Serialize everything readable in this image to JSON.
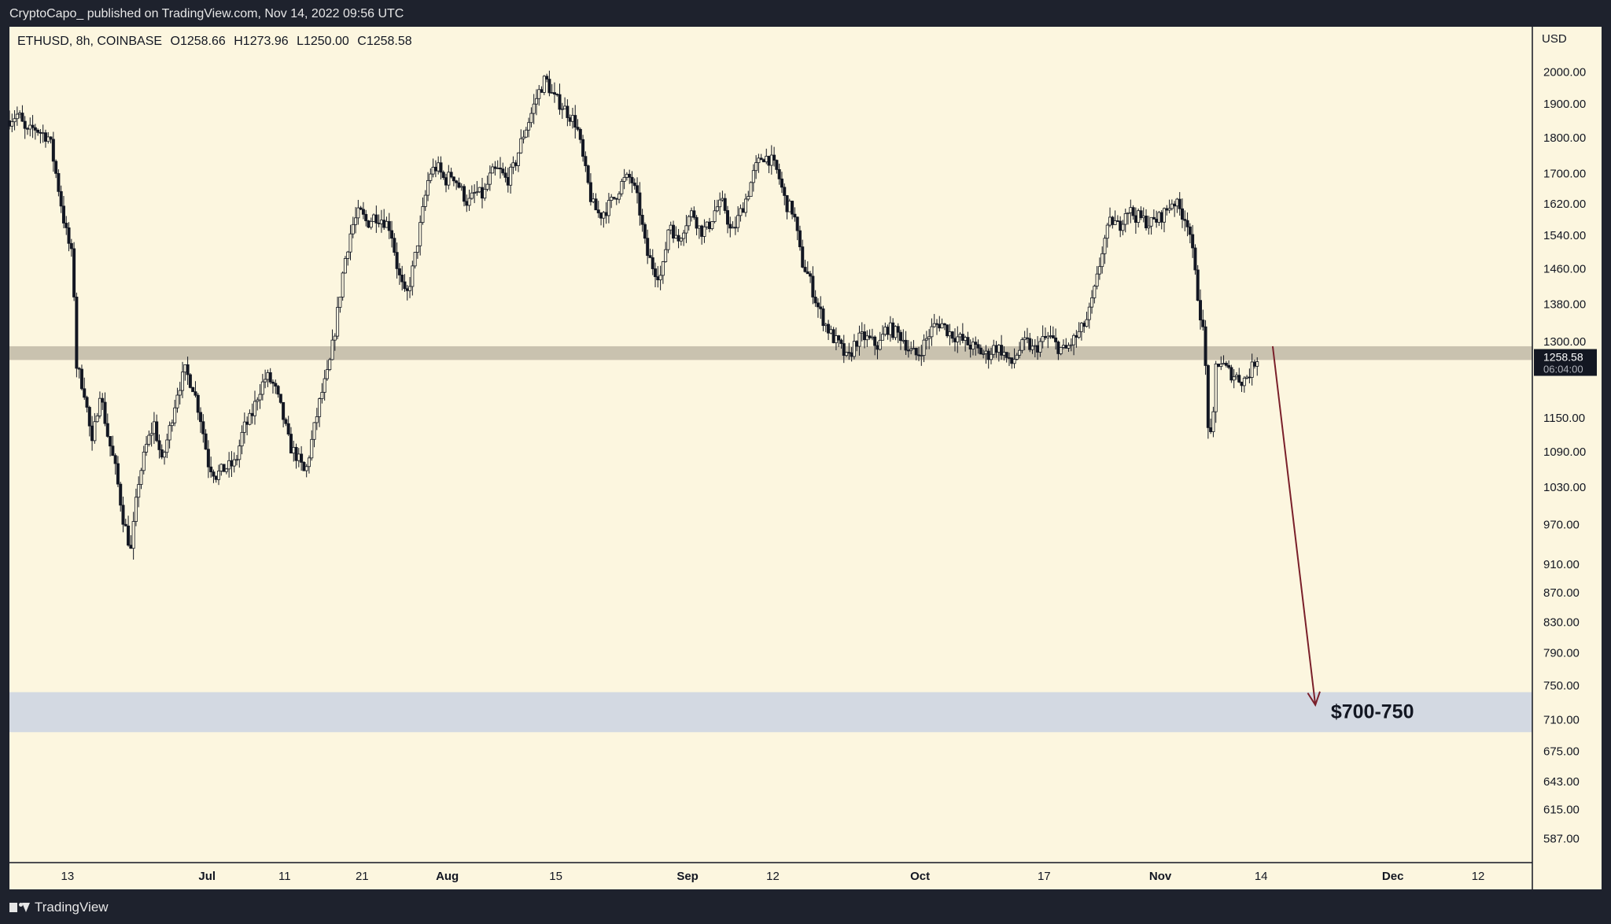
{
  "header": {
    "published": "CryptoCapo_ published on TradingView.com, Nov 14, 2022 09:56 UTC"
  },
  "legend": {
    "symbol": "ETHUSD, 8h, COINBASE",
    "open": "O1258.66",
    "high": "H1273.96",
    "low": "L1250.00",
    "close": "C1258.58"
  },
  "footer": {
    "brand": "TradingView"
  },
  "colors": {
    "background": "#fcf6df",
    "candle": "#131722",
    "resistance_zone": "#c9c2af",
    "target_zone": "#d3d9e2",
    "arrow": "#7a1f2a"
  },
  "chart_data": {
    "type": "candlestick",
    "currency_label": "USD",
    "y_scale": "log",
    "ylim": [
      565,
      2150
    ],
    "y_ticks": [
      {
        "value": 2000,
        "label": "2000.00"
      },
      {
        "value": 1900,
        "label": "1900.00"
      },
      {
        "value": 1800,
        "label": "1800.00"
      },
      {
        "value": 1700,
        "label": "1700.00"
      },
      {
        "value": 1620,
        "label": "1620.00"
      },
      {
        "value": 1540,
        "label": "1540.00"
      },
      {
        "value": 1460,
        "label": "1460.00"
      },
      {
        "value": 1380,
        "label": "1380.00"
      },
      {
        "value": 1300,
        "label": "1300.00"
      },
      {
        "value": 1150,
        "label": "1150.00"
      },
      {
        "value": 1090,
        "label": "1090.00"
      },
      {
        "value": 1030,
        "label": "1030.00"
      },
      {
        "value": 970,
        "label": "970.00"
      },
      {
        "value": 910,
        "label": "910.00"
      },
      {
        "value": 870,
        "label": "870.00"
      },
      {
        "value": 830,
        "label": "830.00"
      },
      {
        "value": 790,
        "label": "790.00"
      },
      {
        "value": 750,
        "label": "750.00"
      },
      {
        "value": 710,
        "label": "710.00"
      },
      {
        "value": 675,
        "label": "675.00"
      },
      {
        "value": 643,
        "label": "643.00"
      },
      {
        "value": 615,
        "label": "615.00"
      },
      {
        "value": 587,
        "label": "587.00"
      }
    ],
    "x_ticks": [
      {
        "day": 0,
        "label": "13"
      },
      {
        "day": 18,
        "label": "Jul"
      },
      {
        "day": 28,
        "label": "11"
      },
      {
        "day": 38,
        "label": "21"
      },
      {
        "day": 49,
        "label": "Aug"
      },
      {
        "day": 63,
        "label": "15"
      },
      {
        "day": 80,
        "label": "Sep"
      },
      {
        "day": 91,
        "label": "12"
      },
      {
        "day": 110,
        "label": "Oct"
      },
      {
        "day": 126,
        "label": "17"
      },
      {
        "day": 141,
        "label": "Nov"
      },
      {
        "day": 154,
        "label": "14"
      },
      {
        "day": 171,
        "label": "Dec"
      },
      {
        "day": 182,
        "label": "12"
      }
    ],
    "xlim_days": [
      -7.5,
      189
    ],
    "last_price": {
      "value": 1258.58,
      "label": "1258.58",
      "countdown": "06:04:00"
    },
    "price_path": [
      [
        -7.5,
        1850
      ],
      [
        -6,
        1870
      ],
      [
        -5,
        1810
      ],
      [
        -4,
        1830
      ],
      [
        -2,
        1800
      ],
      [
        -1,
        1680
      ],
      [
        0,
        1560
      ],
      [
        1,
        1480
      ],
      [
        1.5,
        1250
      ],
      [
        2.5,
        1200
      ],
      [
        3.5,
        1100
      ],
      [
        4.5,
        1200
      ],
      [
        5.5,
        1120
      ],
      [
        6.5,
        1060
      ],
      [
        7.5,
        980
      ],
      [
        8.5,
        930
      ],
      [
        9.5,
        1040
      ],
      [
        10.5,
        1100
      ],
      [
        11.5,
        1140
      ],
      [
        12.5,
        1070
      ],
      [
        13.5,
        1130
      ],
      [
        14.5,
        1200
      ],
      [
        15.5,
        1240
      ],
      [
        16.5,
        1210
      ],
      [
        17.5,
        1150
      ],
      [
        18.5,
        1070
      ],
      [
        19.5,
        1050
      ],
      [
        20.5,
        1060
      ],
      [
        22,
        1070
      ],
      [
        23,
        1130
      ],
      [
        24,
        1150
      ],
      [
        25,
        1200
      ],
      [
        26,
        1230
      ],
      [
        27,
        1210
      ],
      [
        28,
        1160
      ],
      [
        29,
        1100
      ],
      [
        30,
        1080
      ],
      [
        31,
        1050
      ],
      [
        32,
        1120
      ],
      [
        33,
        1190
      ],
      [
        34,
        1240
      ],
      [
        35,
        1340
      ],
      [
        36,
        1470
      ],
      [
        37,
        1560
      ],
      [
        38,
        1600
      ],
      [
        39,
        1570
      ],
      [
        40,
        1590
      ],
      [
        41,
        1580
      ],
      [
        42,
        1560
      ],
      [
        43,
        1450
      ],
      [
        44,
        1390
      ],
      [
        45,
        1470
      ],
      [
        46,
        1580
      ],
      [
        47,
        1700
      ],
      [
        48,
        1720
      ],
      [
        49,
        1680
      ],
      [
        50,
        1700
      ],
      [
        51,
        1660
      ],
      [
        52,
        1620
      ],
      [
        53,
        1650
      ],
      [
        54,
        1640
      ],
      [
        55,
        1700
      ],
      [
        56,
        1710
      ],
      [
        57,
        1680
      ],
      [
        58,
        1720
      ],
      [
        59,
        1800
      ],
      [
        60,
        1860
      ],
      [
        61,
        1930
      ],
      [
        62,
        1980
      ],
      [
        63,
        1920
      ],
      [
        64,
        1900
      ],
      [
        65,
        1870
      ],
      [
        66,
        1840
      ],
      [
        67,
        1720
      ],
      [
        68,
        1620
      ],
      [
        69,
        1590
      ],
      [
        70,
        1610
      ],
      [
        71,
        1640
      ],
      [
        72,
        1680
      ],
      [
        73,
        1690
      ],
      [
        74,
        1620
      ],
      [
        75,
        1500
      ],
      [
        76,
        1460
      ],
      [
        77,
        1440
      ],
      [
        78,
        1580
      ],
      [
        79,
        1520
      ],
      [
        80,
        1570
      ],
      [
        81,
        1600
      ],
      [
        82,
        1550
      ],
      [
        83,
        1560
      ],
      [
        84,
        1610
      ],
      [
        85,
        1620
      ],
      [
        86,
        1540
      ],
      [
        87,
        1590
      ],
      [
        88,
        1640
      ],
      [
        89,
        1710
      ],
      [
        90,
        1750
      ],
      [
        91,
        1740
      ],
      [
        92,
        1700
      ],
      [
        93,
        1620
      ],
      [
        94,
        1600
      ],
      [
        95,
        1480
      ],
      [
        96,
        1440
      ],
      [
        97,
        1380
      ],
      [
        98,
        1340
      ],
      [
        99,
        1310
      ],
      [
        100,
        1290
      ],
      [
        101,
        1260
      ],
      [
        102,
        1300
      ],
      [
        103,
        1310
      ],
      [
        104,
        1300
      ],
      [
        105,
        1290
      ],
      [
        106,
        1330
      ],
      [
        107,
        1320
      ],
      [
        108,
        1310
      ],
      [
        109,
        1280
      ],
      [
        110,
        1270
      ],
      [
        111,
        1300
      ],
      [
        112,
        1330
      ],
      [
        113,
        1340
      ],
      [
        114,
        1320
      ],
      [
        115,
        1310
      ],
      [
        116,
        1300
      ],
      [
        117,
        1290
      ],
      [
        118,
        1280
      ],
      [
        119,
        1270
      ],
      [
        120,
        1290
      ],
      [
        121,
        1280
      ],
      [
        122,
        1250
      ],
      [
        123,
        1280
      ],
      [
        124,
        1300
      ],
      [
        125,
        1280
      ],
      [
        126,
        1300
      ],
      [
        127,
        1310
      ],
      [
        128,
        1290
      ],
      [
        129,
        1280
      ],
      [
        130,
        1300
      ],
      [
        131,
        1320
      ],
      [
        132,
        1350
      ],
      [
        133,
        1420
      ],
      [
        134,
        1520
      ],
      [
        135,
        1580
      ],
      [
        136,
        1560
      ],
      [
        137,
        1610
      ],
      [
        138,
        1590
      ],
      [
        139,
        1580
      ],
      [
        140,
        1570
      ],
      [
        141,
        1580
      ],
      [
        142,
        1600
      ],
      [
        143,
        1630
      ],
      [
        144,
        1600
      ],
      [
        145,
        1570
      ],
      [
        146,
        1420
      ],
      [
        147,
        1300
      ],
      [
        147.5,
        1140
      ],
      [
        148,
        1100
      ],
      [
        148.5,
        1250
      ],
      [
        149,
        1260
      ],
      [
        150,
        1240
      ],
      [
        151,
        1230
      ],
      [
        152,
        1220
      ],
      [
        153,
        1240
      ],
      [
        153.5,
        1258.58
      ]
    ],
    "zones": [
      {
        "name": "resistance",
        "from": 1262,
        "to": 1290,
        "day_from": -7.5,
        "day_to": 189
      },
      {
        "name": "target",
        "from": 696,
        "to": 742,
        "day_from": -7.5,
        "day_to": 189
      }
    ],
    "arrow": {
      "from": [
        155.5,
        1290
      ],
      "to": [
        161,
        727
      ]
    },
    "annotation": {
      "text": "$700-750",
      "day": 163,
      "value": 720
    }
  }
}
